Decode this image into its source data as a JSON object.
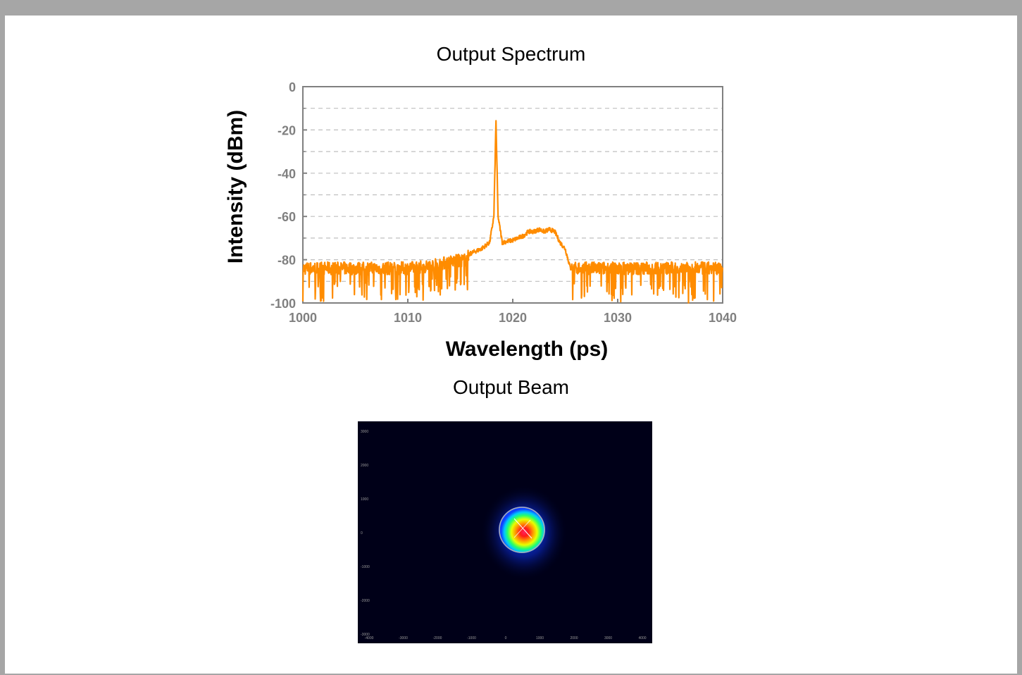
{
  "page": {
    "spectrum_title": "Output Spectrum",
    "beam_title": "Output Beam"
  },
  "colors": {
    "frame": "#a6a6a6",
    "series": "#ff8c00",
    "axis": "#808080",
    "grid": "#bfbfbf",
    "beam_background": "#000018"
  },
  "chart_data": {
    "type": "line",
    "title": "Output Spectrum",
    "xlabel": "Wavelength (ps)",
    "ylabel": "Intensity (dBm)",
    "xlim": [
      1000,
      1040
    ],
    "ylim": [
      -100,
      0
    ],
    "x_ticks": [
      1000,
      1010,
      1020,
      1030,
      1040
    ],
    "y_ticks": [
      0,
      -20,
      -40,
      -60,
      -80,
      -100
    ],
    "grid": "horizontal dashed",
    "series": [
      {
        "color": "#ff8c00",
        "x": [
          1000,
          1002,
          1004,
          1006,
          1008,
          1010,
          1012,
          1014,
          1015.5,
          1016,
          1017,
          1017.8,
          1018.2,
          1018.4,
          1018.6,
          1019,
          1020,
          1021,
          1021.5,
          1022,
          1022.5,
          1023,
          1023.5,
          1024,
          1024.5,
          1025,
          1025.5,
          1026,
          1028,
          1030,
          1032,
          1034,
          1036,
          1038,
          1040
        ],
        "y": [
          -84,
          -84,
          -84,
          -84,
          -84,
          -84,
          -83,
          -81,
          -80,
          -77,
          -75,
          -72,
          -60,
          -16,
          -60,
          -72,
          -71,
          -69,
          -67,
          -67,
          -66,
          -67,
          -66,
          -67,
          -72,
          -75,
          -84,
          -84,
          -84,
          -84,
          -84,
          -84,
          -84,
          -84,
          -84
        ]
      }
    ]
  },
  "beam_image": {
    "description_free": true,
    "x_ticks": [
      "-4000",
      "-3000",
      "-2000",
      "-1000",
      "0",
      "1000",
      "2000",
      "3000",
      "4000"
    ],
    "y_ticks": [
      "3000",
      "2000",
      "1000",
      "0",
      "-1000",
      "-2000",
      "-3000"
    ]
  }
}
